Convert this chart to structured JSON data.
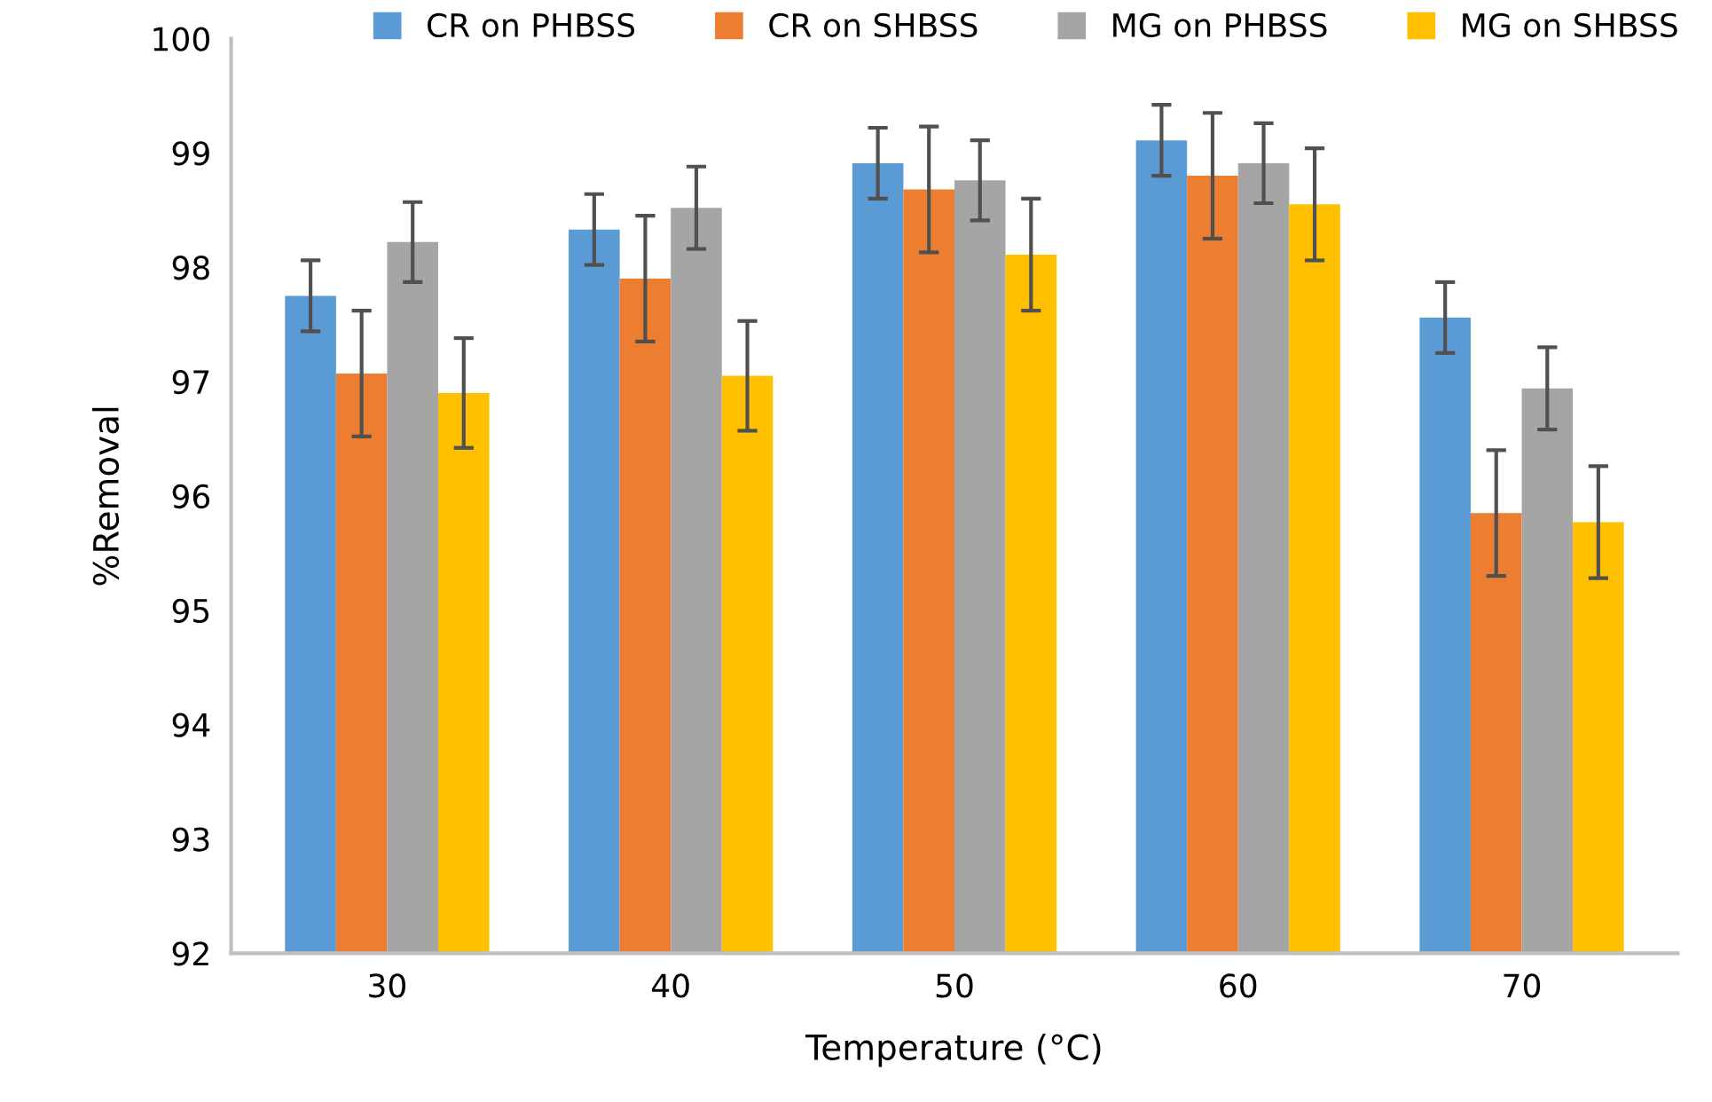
{
  "chart_data": {
    "type": "bar",
    "xlabel": "Temperature (°C)",
    "ylabel": "%Removal",
    "categories": [
      "30",
      "40",
      "50",
      "60",
      "70"
    ],
    "series": [
      {
        "name": "CR on PHBSS",
        "color": "#5b9bd5",
        "values": [
          97.75,
          98.33,
          98.91,
          99.11,
          97.56
        ],
        "errors": [
          0.31,
          0.31,
          0.31,
          0.31,
          0.31
        ]
      },
      {
        "name": "CR on SHBSS",
        "color": "#ed7d31",
        "values": [
          97.07,
          97.9,
          98.68,
          98.8,
          95.85
        ],
        "errors": [
          0.55,
          0.55,
          0.55,
          0.55,
          0.55
        ]
      },
      {
        "name": "MG on PHBSS",
        "color": "#a5a5a5",
        "values": [
          98.22,
          98.52,
          98.76,
          98.91,
          96.94
        ],
        "errors": [
          0.35,
          0.36,
          0.35,
          0.35,
          0.36
        ]
      },
      {
        "name": "MG on SHBSS",
        "color": "#ffc000",
        "values": [
          96.9,
          97.05,
          98.11,
          98.55,
          95.77
        ],
        "errors": [
          0.48,
          0.48,
          0.49,
          0.49,
          0.49
        ]
      }
    ],
    "ylim": [
      92,
      100
    ],
    "yticks": [
      92,
      93,
      94,
      95,
      96,
      97,
      98,
      99,
      100
    ],
    "grid": false,
    "legend": "top"
  }
}
